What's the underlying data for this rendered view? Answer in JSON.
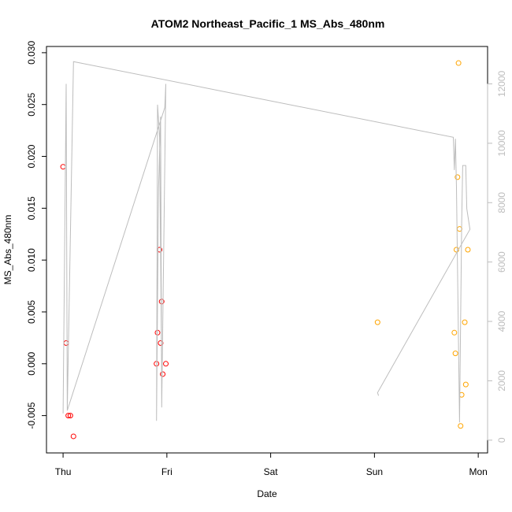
{
  "chart_data": {
    "type": "scatter",
    "title": "ATOM2 Northeast_Pacific_1 MS_Abs_480nm",
    "xlabel": "Date",
    "ylabel": "MS_Abs_480nm",
    "x_ticks": [
      {
        "label": "Thu",
        "day": 0
      },
      {
        "label": "Fri",
        "day": 1
      },
      {
        "label": "Sat",
        "day": 2
      },
      {
        "label": "Sun",
        "day": 3
      },
      {
        "label": "Mon",
        "day": 4
      }
    ],
    "xlim": [
      -0.16,
      4.09
    ],
    "ylim": [
      -0.0086,
      0.0306
    ],
    "y_ticks": [
      -0.005,
      0.0,
      0.005,
      0.01,
      0.015,
      0.02,
      0.025,
      0.03
    ],
    "y_tick_labels": [
      "-0.005",
      "0.000",
      "0.005",
      "0.010",
      "0.015",
      "0.020",
      "0.025",
      "0.030"
    ],
    "y2lim": [
      -430,
      13260
    ],
    "y2_ticks": [
      0,
      2000,
      4000,
      6000,
      8000,
      10000,
      12000
    ],
    "grid": false,
    "colors": {
      "series_red": "#ff0000",
      "series_orange": "#ffa500",
      "depth_line": "#bdbdbd",
      "axis": "#000000",
      "right_axis": "#bdbdbd"
    },
    "series": [
      {
        "color": "red",
        "marker": "open-circle",
        "points": [
          {
            "x": 0.0,
            "y": 0.019
          },
          {
            "x": 0.03,
            "y": 0.002
          },
          {
            "x": 0.05,
            "y": -0.005
          },
          {
            "x": 0.07,
            "y": -0.005
          },
          {
            "x": 0.1,
            "y": -0.007
          },
          {
            "x": 0.9,
            "y": 0.0
          },
          {
            "x": 0.91,
            "y": 0.003
          },
          {
            "x": 0.93,
            "y": 0.011
          },
          {
            "x": 0.94,
            "y": 0.002
          },
          {
            "x": 0.95,
            "y": 0.006
          },
          {
            "x": 0.96,
            "y": -0.001
          },
          {
            "x": 0.99,
            "y": 0.0
          }
        ]
      },
      {
        "color": "orange",
        "marker": "open-circle",
        "points": [
          {
            "x": 3.03,
            "y": 0.004
          },
          {
            "x": 3.77,
            "y": 0.003
          },
          {
            "x": 3.78,
            "y": 0.001
          },
          {
            "x": 3.79,
            "y": 0.011
          },
          {
            "x": 3.8,
            "y": 0.018
          },
          {
            "x": 3.81,
            "y": 0.029
          },
          {
            "x": 3.82,
            "y": 0.013
          },
          {
            "x": 3.83,
            "y": -0.006
          },
          {
            "x": 3.84,
            "y": -0.003
          },
          {
            "x": 3.87,
            "y": 0.004
          },
          {
            "x": 3.88,
            "y": -0.002
          },
          {
            "x": 3.9,
            "y": 0.011
          }
        ]
      },
      {
        "color": "gray",
        "marker": "line",
        "axis": "right",
        "points": [
          {
            "x": 0.0,
            "y": 900
          },
          {
            "x": 0.03,
            "y": 12000
          },
          {
            "x": 0.04,
            "y": 1000
          },
          {
            "x": 0.1,
            "y": 12750
          },
          {
            "x": 3.76,
            "y": 10200
          },
          {
            "x": 3.77,
            "y": 9100
          },
          {
            "x": 3.78,
            "y": 10150
          },
          {
            "x": 3.79,
            "y": 8500
          },
          {
            "x": 3.82,
            "y": 600
          },
          {
            "x": 3.84,
            "y": 7300
          },
          {
            "x": 3.85,
            "y": 9250
          },
          {
            "x": 3.88,
            "y": 9250
          },
          {
            "x": 3.89,
            "y": 7800
          },
          {
            "x": 3.92,
            "y": 7100
          },
          {
            "x": 3.03,
            "y": 1600
          },
          {
            "x": 3.04,
            "y": 1500
          }
        ]
      },
      {
        "color": "gray",
        "marker": "line",
        "axis": "right",
        "points": [
          {
            "x": 0.04,
            "y": 1000
          },
          {
            "x": 0.98,
            "y": 11200
          },
          {
            "x": 0.99,
            "y": 12000
          },
          {
            "x": 0.95,
            "y": 1100
          },
          {
            "x": 0.94,
            "y": 10900
          },
          {
            "x": 0.92,
            "y": 8500
          },
          {
            "x": 0.9,
            "y": 650
          },
          {
            "x": 0.91,
            "y": 11300
          },
          {
            "x": 0.93,
            "y": 10200
          },
          {
            "x": 0.95,
            "y": 2000
          }
        ]
      }
    ]
  }
}
